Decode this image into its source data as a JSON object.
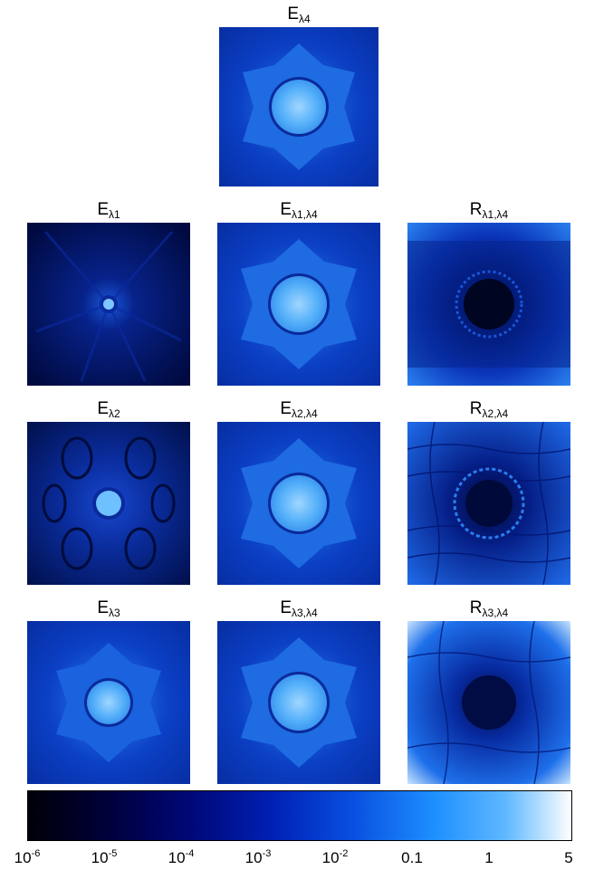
{
  "panels": [
    {
      "id": "e4",
      "base": "E",
      "sub": "λ4"
    },
    {
      "id": "e1",
      "base": "E",
      "sub": "λ1"
    },
    {
      "id": "e14",
      "base": "E",
      "sub": "λ1,λ4"
    },
    {
      "id": "r14",
      "base": "R",
      "sub": "λ1,λ4"
    },
    {
      "id": "e2",
      "base": "E",
      "sub": "λ2"
    },
    {
      "id": "e24",
      "base": "E",
      "sub": "λ2,λ4"
    },
    {
      "id": "r24",
      "base": "R",
      "sub": "λ2,λ4"
    },
    {
      "id": "e3",
      "base": "E",
      "sub": "λ3"
    },
    {
      "id": "e34",
      "base": "E",
      "sub": "λ3,λ4"
    },
    {
      "id": "r34",
      "base": "R",
      "sub": "λ3,λ4"
    }
  ],
  "colorbar": {
    "ticks": [
      {
        "base": "10",
        "exp": "-6"
      },
      {
        "base": "10",
        "exp": "-5"
      },
      {
        "base": "10",
        "exp": "-4"
      },
      {
        "base": "10",
        "exp": "-3"
      },
      {
        "base": "10",
        "exp": "-2"
      },
      {
        "base": "0.1",
        "exp": ""
      },
      {
        "base": "1",
        "exp": ""
      },
      {
        "base": "5",
        "exp": ""
      }
    ]
  }
}
